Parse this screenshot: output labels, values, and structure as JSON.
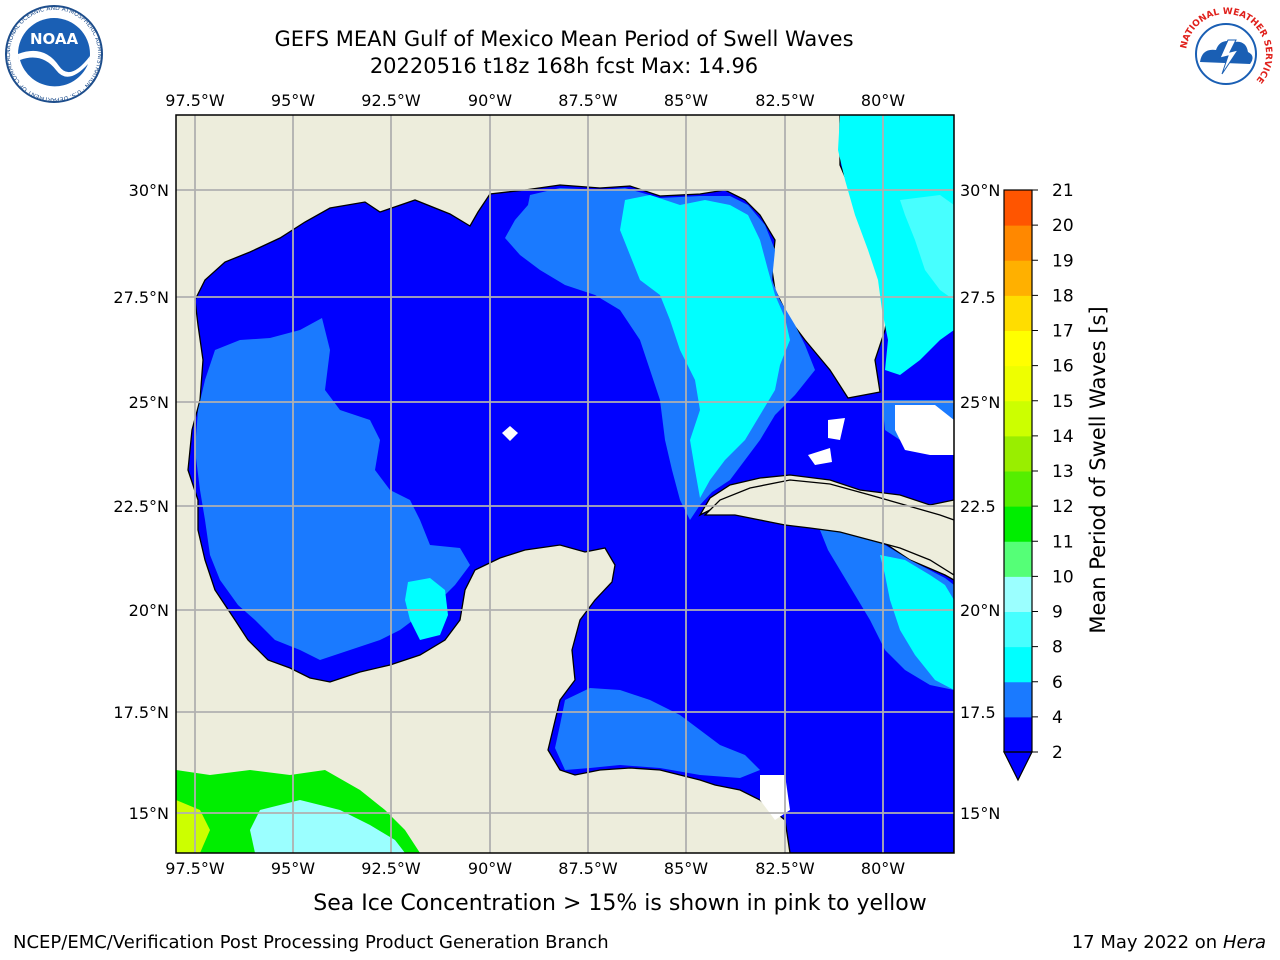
{
  "header": {
    "title_line1": "GEFS MEAN Gulf of Mexico Mean Period of Swell Waves",
    "title_line2": "20220516 t18z 168h fcst   Max: 14.96"
  },
  "logos": {
    "noaa_text": "NOAA",
    "noaa_ring": "NATIONAL OCEANIC AND ATMOSPHERIC ADMINISTRATION · U.S. DEPARTMENT OF COMMERCE",
    "nws_ring": "NATIONAL WEATHER SERVICE"
  },
  "map": {
    "lon_labels": [
      "97.5°W",
      "95°W",
      "92.5°W",
      "90°W",
      "87.5°W",
      "85°W",
      "82.5°W",
      "80°W"
    ],
    "lat_labels_left": [
      "30°N",
      "27.5°N",
      "25°N",
      "22.5°N",
      "20°N",
      "17.5°N",
      "15°N"
    ],
    "lat_labels_right": [
      "30°N",
      "27.5",
      "25°N",
      "22.5",
      "20°N",
      "17.5",
      "15°N"
    ],
    "colors": {
      "land": "#ededdc",
      "ocean_2_4": "#0000ff",
      "ocean_4_6": "#1a7aff",
      "ocean_6_8": "#00ffff",
      "ocean_8_9": "#47ffff",
      "grid": "#b0b0b0"
    }
  },
  "colorbar": {
    "title": "Mean Period of Swell Waves [s]",
    "ticks": [
      "2",
      "4",
      "6",
      "8",
      "9",
      "10",
      "11",
      "12",
      "13",
      "14",
      "15",
      "16",
      "17",
      "18",
      "19",
      "20",
      "21"
    ],
    "colors": [
      "#0000ff",
      "#1a7aff",
      "#00ffff",
      "#47ffff",
      "#9bffff",
      "#55ff77",
      "#00ee00",
      "#55ee00",
      "#99ee00",
      "#ccff00",
      "#eeff00",
      "#ffff00",
      "#ffdd00",
      "#ffb000",
      "#ff8800",
      "#ff5500",
      "#ff2200",
      "#ff0000"
    ]
  },
  "footer": {
    "note": "Sea Ice Concentration > 15% is shown in pink to yellow",
    "credit": "NCEP/EMC/Verification Post Processing Product Generation Branch",
    "date": "17 May 2022 on",
    "host": "Hera"
  }
}
